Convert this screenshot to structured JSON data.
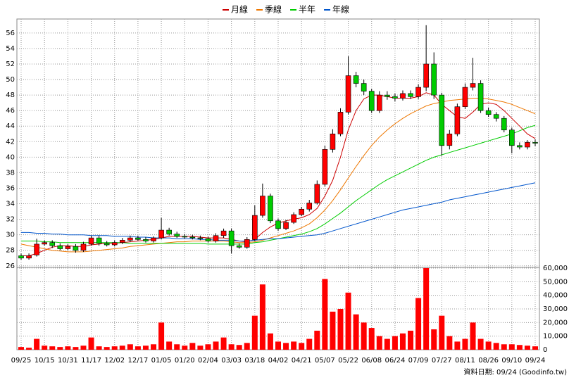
{
  "chart_data": {
    "type": "candlestick",
    "categories": [
      "09/25",
      null,
      null,
      "10/15",
      null,
      null,
      "10/31",
      null,
      null,
      "11/17",
      null,
      null,
      "12/02",
      null,
      null,
      "12/17",
      null,
      null,
      "01/05",
      null,
      null,
      "01/20",
      null,
      null,
      "02/04",
      null,
      null,
      "03/03",
      null,
      null,
      "03/18",
      null,
      null,
      "04/02",
      null,
      null,
      "04/21",
      null,
      null,
      "05/07",
      null,
      null,
      "05/22",
      null,
      null,
      "06/08",
      null,
      null,
      "06/24",
      null,
      null,
      "07/09",
      null,
      null,
      "07/27",
      null,
      null,
      "08/11",
      null,
      null,
      "08/26",
      null,
      null,
      "09/10",
      null,
      null,
      "09/24"
    ],
    "open": [
      27.3,
      27.0,
      27.4,
      28.8,
      29.0,
      28.6,
      28.2,
      28.5,
      28.0,
      28.8,
      29.6,
      28.9,
      28.7,
      29.0,
      29.3,
      29.6,
      29.4,
      29.2,
      29.6,
      30.6,
      30.1,
      29.8,
      29.7,
      29.6,
      29.5,
      29.2,
      29.9,
      30.5,
      28.6,
      28.4,
      29.4,
      32.5,
      35.0,
      31.8,
      30.8,
      31.6,
      32.6,
      33.3,
      34.1,
      36.5,
      41.0,
      43.0,
      45.8,
      50.5,
      49.5,
      48.5,
      46.0,
      48.0,
      47.8,
      47.6,
      48.2,
      47.8,
      49.0,
      52.0,
      48.0,
      41.5,
      43.0,
      46.5,
      49.0,
      49.5,
      46.0,
      45.5,
      45.0,
      43.5,
      41.5,
      41.3,
      41.9
    ],
    "high": [
      27.6,
      27.6,
      29.5,
      29.3,
      29.3,
      28.9,
      28.8,
      28.8,
      29.1,
      29.9,
      29.9,
      29.2,
      29.3,
      29.6,
      29.9,
      29.9,
      29.7,
      29.8,
      32.2,
      30.9,
      30.4,
      30.1,
      30.0,
      29.9,
      29.8,
      30.2,
      30.8,
      30.8,
      28.9,
      29.7,
      33.8,
      36.6,
      35.3,
      32.1,
      31.9,
      32.9,
      33.6,
      34.5,
      37.0,
      41.5,
      43.6,
      46.3,
      53.0,
      51.0,
      50.0,
      48.8,
      48.5,
      48.5,
      48.2,
      48.6,
      48.6,
      49.4,
      57.0,
      53.5,
      48.3,
      43.5,
      46.9,
      49.5,
      52.8,
      49.9,
      46.4,
      45.8,
      45.3,
      43.8,
      41.9,
      42.2,
      42.3
    ],
    "low": [
      26.8,
      26.8,
      27.2,
      28.6,
      28.3,
      28.0,
      28.0,
      27.7,
      27.8,
      28.6,
      28.6,
      28.5,
      28.5,
      28.8,
      29.1,
      29.2,
      29.0,
      29.0,
      29.4,
      29.9,
      29.6,
      29.5,
      29.4,
      29.3,
      29.0,
      29.0,
      29.6,
      27.6,
      28.2,
      28.2,
      29.2,
      32.2,
      31.5,
      30.5,
      30.6,
      31.4,
      32.4,
      33.0,
      33.9,
      36.2,
      40.6,
      42.7,
      45.5,
      49.0,
      48.0,
      45.7,
      45.7,
      47.4,
      47.2,
      47.3,
      47.5,
      47.5,
      48.5,
      47.5,
      40.2,
      41.0,
      42.7,
      46.2,
      48.6,
      45.7,
      45.2,
      44.6,
      43.2,
      40.5,
      41.0,
      41.0,
      41.4
    ],
    "close": [
      27.0,
      27.3,
      28.8,
      29.0,
      28.6,
      28.2,
      28.5,
      28.0,
      28.8,
      29.6,
      28.9,
      28.7,
      29.0,
      29.3,
      29.6,
      29.4,
      29.2,
      29.6,
      30.6,
      30.1,
      29.8,
      29.7,
      29.6,
      29.5,
      29.2,
      29.9,
      30.5,
      28.6,
      28.4,
      29.4,
      32.5,
      35.0,
      31.8,
      30.8,
      31.6,
      32.6,
      33.3,
      34.1,
      36.5,
      41.0,
      43.0,
      45.8,
      50.5,
      49.5,
      48.5,
      46.0,
      48.0,
      47.8,
      47.6,
      48.2,
      47.8,
      49.0,
      52.0,
      48.0,
      41.5,
      43.0,
      46.5,
      49.0,
      49.5,
      46.0,
      45.5,
      45.0,
      43.5,
      41.5,
      41.3,
      41.9,
      41.8
    ],
    "volume": [
      2000,
      1500,
      8000,
      3000,
      2500,
      2000,
      2500,
      2000,
      3000,
      9000,
      2500,
      2000,
      2500,
      3000,
      4000,
      2500,
      3000,
      4000,
      20000,
      6000,
      4000,
      3000,
      5000,
      3000,
      4000,
      6000,
      9000,
      4000,
      3500,
      5000,
      25000,
      48000,
      12000,
      6000,
      5000,
      6000,
      5000,
      8000,
      14000,
      52000,
      28000,
      30000,
      42000,
      26000,
      20000,
      16000,
      10000,
      8000,
      10000,
      12000,
      14000,
      38000,
      60000,
      15000,
      25000,
      10000,
      6000,
      8000,
      20000,
      8000,
      6000,
      5000,
      4000,
      4000,
      3500,
      3000,
      2500
    ],
    "up_color": "#ff0000",
    "down_color": "#00cc00",
    "volume_color": "#ff0000",
    "series": [
      {
        "name": "月線",
        "color": "#cc0000",
        "values": [
          27.3,
          27.3,
          27.6,
          28.0,
          28.4,
          28.6,
          28.6,
          28.5,
          28.5,
          28.7,
          28.8,
          28.9,
          28.9,
          29.0,
          29.1,
          29.2,
          29.3,
          29.4,
          29.6,
          29.8,
          29.8,
          29.8,
          29.8,
          29.7,
          29.6,
          29.6,
          29.6,
          29.4,
          29.2,
          29.1,
          29.4,
          30.3,
          31.0,
          31.5,
          31.8,
          32.0,
          32.2,
          32.6,
          33.4,
          35.0,
          37.0,
          40.0,
          43.5,
          46.0,
          47.5,
          48.0,
          48.0,
          47.8,
          47.6,
          47.6,
          47.6,
          47.8,
          48.3,
          48.0,
          46.8,
          46.0,
          45.2,
          45.0,
          45.8,
          46.8,
          47.0,
          46.8,
          46.0,
          45.0,
          44.0,
          43.0,
          42.4
        ]
      },
      {
        "name": "季線",
        "color": "#ee7700",
        "values": [
          28.8,
          28.6,
          28.4,
          28.2,
          28.0,
          27.9,
          27.8,
          27.8,
          27.8,
          27.9,
          28.0,
          28.1,
          28.2,
          28.3,
          28.5,
          28.6,
          28.7,
          28.8,
          28.9,
          29.0,
          29.1,
          29.1,
          29.2,
          29.2,
          29.2,
          29.2,
          29.2,
          29.1,
          29.0,
          29.0,
          29.1,
          29.3,
          29.6,
          29.9,
          30.2,
          30.5,
          30.9,
          31.4,
          32.2,
          33.2,
          34.4,
          35.8,
          37.3,
          38.8,
          40.2,
          41.5,
          42.6,
          43.5,
          44.3,
          45.0,
          45.6,
          46.1,
          46.6,
          46.9,
          47.1,
          47.3,
          47.4,
          47.5,
          47.6,
          47.6,
          47.5,
          47.3,
          47.1,
          46.8,
          46.4,
          46.0,
          45.6
        ]
      },
      {
        "name": "半年",
        "color": "#00cc00",
        "values": [
          29.2,
          29.2,
          29.2,
          29.1,
          29.1,
          29.0,
          29.0,
          29.0,
          29.0,
          29.0,
          29.0,
          29.0,
          29.0,
          29.0,
          28.9,
          28.9,
          28.9,
          28.9,
          28.9,
          28.9,
          28.9,
          28.9,
          28.9,
          28.9,
          28.8,
          28.8,
          28.8,
          28.8,
          28.8,
          28.8,
          29.0,
          29.1,
          29.3,
          29.5,
          29.7,
          29.9,
          30.1,
          30.4,
          30.8,
          31.4,
          32.1,
          32.8,
          33.6,
          34.4,
          35.1,
          35.8,
          36.5,
          37.1,
          37.6,
          38.1,
          38.6,
          39.1,
          39.6,
          40.0,
          40.3,
          40.6,
          40.9,
          41.2,
          41.5,
          41.8,
          42.1,
          42.4,
          42.7,
          43.0,
          43.4,
          43.8,
          44.1
        ]
      },
      {
        "name": "年線",
        "color": "#0055cc",
        "values": [
          30.3,
          30.3,
          30.2,
          30.2,
          30.1,
          30.1,
          30.0,
          30.0,
          30.0,
          29.9,
          29.9,
          29.9,
          29.8,
          29.8,
          29.8,
          29.7,
          29.7,
          29.6,
          29.6,
          29.6,
          29.5,
          29.5,
          29.5,
          29.4,
          29.4,
          29.3,
          29.3,
          29.3,
          29.2,
          29.2,
          29.3,
          29.4,
          29.5,
          29.5,
          29.6,
          29.7,
          29.8,
          29.9,
          30.0,
          30.2,
          30.5,
          30.8,
          31.1,
          31.4,
          31.7,
          32.0,
          32.3,
          32.6,
          32.9,
          33.2,
          33.4,
          33.6,
          33.8,
          34.0,
          34.2,
          34.5,
          34.7,
          34.9,
          35.1,
          35.3,
          35.5,
          35.7,
          35.9,
          36.1,
          36.3,
          36.5,
          36.7
        ]
      }
    ],
    "ylim": [
      25.8,
      57.8
    ],
    "yticks": [
      26,
      28,
      30,
      32,
      34,
      36,
      38,
      40,
      42,
      44,
      46,
      48,
      50,
      52,
      54,
      56
    ],
    "volume_ylim": [
      0,
      60000
    ],
    "volume_yticks": [
      0,
      {
        "value": 10000,
        "label": "10,000"
      },
      {
        "value": 20000,
        "label": "20,000"
      },
      {
        "value": 30000,
        "label": "30,000"
      },
      {
        "value": 40000,
        "label": "40,000"
      },
      {
        "value": 50000,
        "label": "50,000"
      },
      {
        "value": 60000,
        "label": "60,000"
      }
    ],
    "grid": true,
    "footer": "資料日期: 09/24 (Goodinfo.tw)"
  }
}
